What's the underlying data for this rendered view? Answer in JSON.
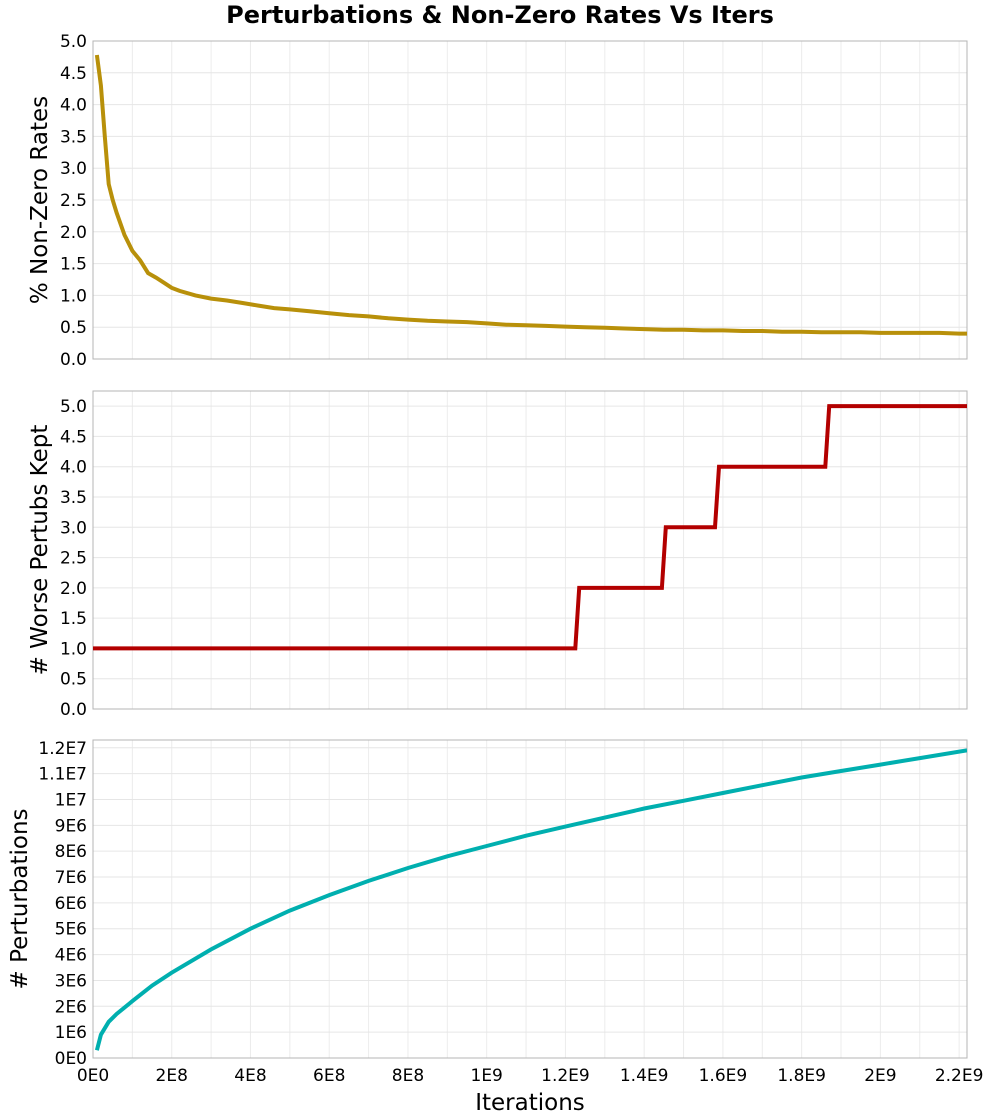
{
  "figure": {
    "title": "Perturbations & Non-Zero Rates Vs Iters"
  },
  "chart_data": [
    {
      "type": "line",
      "ylabel": "% Non-Zero Rates",
      "xlim": [
        0,
        2220000000
      ],
      "ylim": [
        0,
        5
      ],
      "y_ticks": [
        "0.0",
        "0.5",
        "1.0",
        "1.5",
        "2.0",
        "2.5",
        "3.0",
        "3.5",
        "4.0",
        "4.5",
        "5.0"
      ],
      "x_ticks_labels_shown": false,
      "grid": true,
      "series": [
        {
          "color": "#b8900a",
          "x": [
            10000000,
            20000000,
            30000000,
            40000000,
            50000000,
            60000000,
            80000000,
            100000000,
            120000000,
            140000000,
            160000000,
            180000000,
            200000000,
            220000000,
            260000000,
            300000000,
            340000000,
            380000000,
            420000000,
            460000000,
            500000000,
            550000000,
            600000000,
            650000000,
            700000000,
            750000000,
            800000000,
            850000000,
            900000000,
            950000000,
            1000000000,
            1050000000,
            1100000000,
            1150000000,
            1200000000,
            1250000000,
            1300000000,
            1350000000,
            1400000000,
            1450000000,
            1500000000,
            1550000000,
            1600000000,
            1650000000,
            1700000000,
            1750000000,
            1800000000,
            1850000000,
            1900000000,
            1950000000,
            2000000000,
            2050000000,
            2100000000,
            2150000000,
            2200000000,
            2220000000
          ],
          "y": [
            4.78,
            4.3,
            3.5,
            2.75,
            2.5,
            2.3,
            1.95,
            1.7,
            1.55,
            1.35,
            1.28,
            1.2,
            1.12,
            1.07,
            1.0,
            0.95,
            0.92,
            0.88,
            0.84,
            0.8,
            0.78,
            0.75,
            0.72,
            0.69,
            0.67,
            0.64,
            0.62,
            0.6,
            0.59,
            0.58,
            0.56,
            0.54,
            0.53,
            0.52,
            0.51,
            0.5,
            0.49,
            0.48,
            0.47,
            0.46,
            0.46,
            0.45,
            0.45,
            0.44,
            0.44,
            0.43,
            0.43,
            0.42,
            0.42,
            0.42,
            0.41,
            0.41,
            0.41,
            0.41,
            0.4,
            0.4
          ]
        }
      ]
    },
    {
      "type": "line",
      "ylabel": "# Worse Pertubs Kept",
      "xlim": [
        0,
        2220000000
      ],
      "ylim": [
        0,
        5.25
      ],
      "y_ticks": [
        "0.0",
        "0.5",
        "1.0",
        "1.5",
        "2.0",
        "2.5",
        "3.0",
        "3.5",
        "4.0",
        "4.5",
        "5.0"
      ],
      "x_ticks_labels_shown": false,
      "grid": true,
      "series": [
        {
          "color": "#b30000",
          "x": [
            0,
            1225000000,
            1235000000,
            1445000000,
            1455000000,
            1580000000,
            1590000000,
            1860000000,
            1870000000,
            2220000000
          ],
          "y": [
            1,
            1,
            2,
            2,
            3,
            3,
            4,
            4,
            5,
            5
          ]
        }
      ]
    },
    {
      "type": "line",
      "ylabel": "# Perturbations",
      "xlabel": "Iterations",
      "xlim": [
        0,
        2220000000
      ],
      "ylim": [
        0,
        12300000
      ],
      "x_ticks": [
        "0E0",
        "2E8",
        "4E8",
        "6E8",
        "8E8",
        "1E9",
        "1.2E9",
        "1.4E9",
        "1.6E9",
        "1.8E9",
        "2E9",
        "2.2E9"
      ],
      "y_ticks": [
        "0E0",
        "1E6",
        "2E6",
        "3E6",
        "4E6",
        "5E6",
        "6E6",
        "7E6",
        "8E6",
        "9E6",
        "1E7",
        "1.1E7",
        "1.2E7"
      ],
      "grid": true,
      "series": [
        {
          "color": "#00afaf",
          "x": [
            10000000,
            20000000,
            40000000,
            60000000,
            80000000,
            100000000,
            150000000,
            200000000,
            300000000,
            400000000,
            500000000,
            600000000,
            700000000,
            800000000,
            900000000,
            1000000000,
            1100000000,
            1200000000,
            1300000000,
            1400000000,
            1500000000,
            1600000000,
            1700000000,
            1800000000,
            1900000000,
            2000000000,
            2100000000,
            2220000000
          ],
          "y": [
            300000,
            900000,
            1400000,
            1700000,
            1950000,
            2200000,
            2800000,
            3300000,
            4200000,
            5000000,
            5700000,
            6300000,
            6850000,
            7350000,
            7800000,
            8200000,
            8600000,
            8950000,
            9300000,
            9650000,
            9950000,
            10250000,
            10550000,
            10850000,
            11100000,
            11350000,
            11600000,
            11900000
          ]
        }
      ]
    }
  ]
}
